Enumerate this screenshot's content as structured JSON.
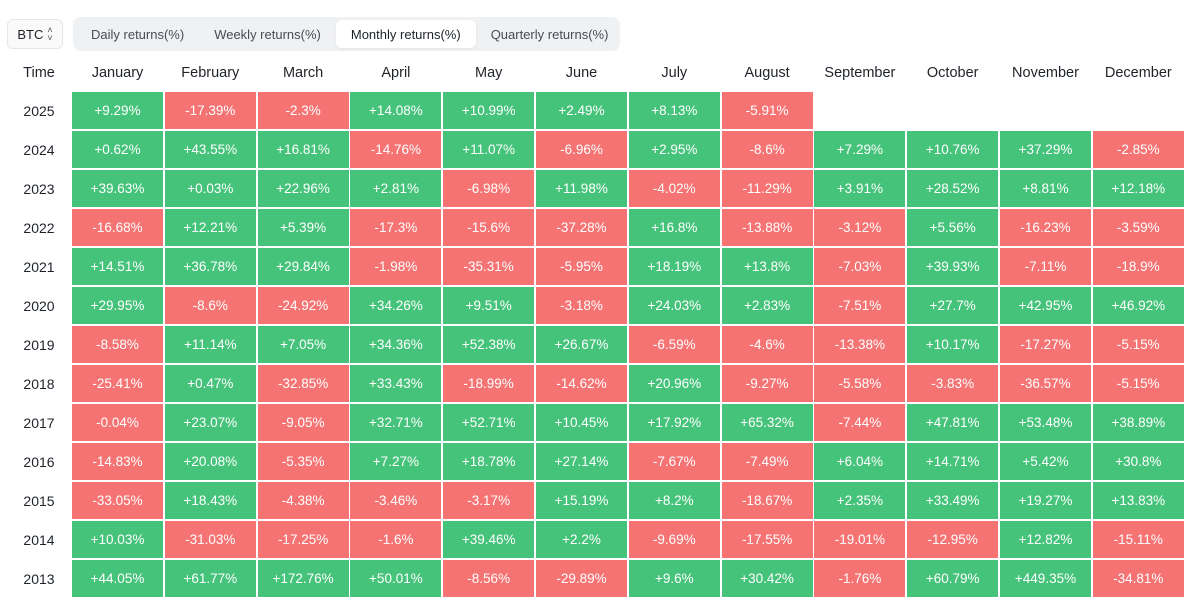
{
  "asset_selector": {
    "value": "BTC"
  },
  "tabs": [
    {
      "label": "Daily returns(%)",
      "active": false
    },
    {
      "label": "Weekly returns(%)",
      "active": false
    },
    {
      "label": "Monthly returns(%)",
      "active": true
    },
    {
      "label": "Quarterly returns(%)",
      "active": false
    }
  ],
  "table": {
    "time_header": "Time",
    "months": [
      "January",
      "February",
      "March",
      "April",
      "May",
      "June",
      "July",
      "August",
      "September",
      "October",
      "November",
      "December"
    ],
    "colors": {
      "positive": "#46c37b",
      "negative": "#f57373"
    },
    "rows": [
      {
        "year": "2025",
        "values": [
          "+9.29%",
          "-17.39%",
          "-2.3%",
          "+14.08%",
          "+10.99%",
          "+2.49%",
          "+8.13%",
          "-5.91%",
          "",
          "",
          "",
          ""
        ]
      },
      {
        "year": "2024",
        "values": [
          "+0.62%",
          "+43.55%",
          "+16.81%",
          "-14.76%",
          "+11.07%",
          "-6.96%",
          "+2.95%",
          "-8.6%",
          "+7.29%",
          "+10.76%",
          "+37.29%",
          "-2.85%"
        ]
      },
      {
        "year": "2023",
        "values": [
          "+39.63%",
          "+0.03%",
          "+22.96%",
          "+2.81%",
          "-6.98%",
          "+11.98%",
          "-4.02%",
          "-11.29%",
          "+3.91%",
          "+28.52%",
          "+8.81%",
          "+12.18%"
        ]
      },
      {
        "year": "2022",
        "values": [
          "-16.68%",
          "+12.21%",
          "+5.39%",
          "-17.3%",
          "-15.6%",
          "-37.28%",
          "+16.8%",
          "-13.88%",
          "-3.12%",
          "+5.56%",
          "-16.23%",
          "-3.59%"
        ]
      },
      {
        "year": "2021",
        "values": [
          "+14.51%",
          "+36.78%",
          "+29.84%",
          "-1.98%",
          "-35.31%",
          "-5.95%",
          "+18.19%",
          "+13.8%",
          "-7.03%",
          "+39.93%",
          "-7.11%",
          "-18.9%"
        ]
      },
      {
        "year": "2020",
        "values": [
          "+29.95%",
          "-8.6%",
          "-24.92%",
          "+34.26%",
          "+9.51%",
          "-3.18%",
          "+24.03%",
          "+2.83%",
          "-7.51%",
          "+27.7%",
          "+42.95%",
          "+46.92%"
        ]
      },
      {
        "year": "2019",
        "values": [
          "-8.58%",
          "+11.14%",
          "+7.05%",
          "+34.36%",
          "+52.38%",
          "+26.67%",
          "-6.59%",
          "-4.6%",
          "-13.38%",
          "+10.17%",
          "-17.27%",
          "-5.15%"
        ]
      },
      {
        "year": "2018",
        "values": [
          "-25.41%",
          "+0.47%",
          "-32.85%",
          "+33.43%",
          "-18.99%",
          "-14.62%",
          "+20.96%",
          "-9.27%",
          "-5.58%",
          "-3.83%",
          "-36.57%",
          "-5.15%"
        ]
      },
      {
        "year": "2017",
        "values": [
          "-0.04%",
          "+23.07%",
          "-9.05%",
          "+32.71%",
          "+52.71%",
          "+10.45%",
          "+17.92%",
          "+65.32%",
          "-7.44%",
          "+47.81%",
          "+53.48%",
          "+38.89%"
        ]
      },
      {
        "year": "2016",
        "values": [
          "-14.83%",
          "+20.08%",
          "-5.35%",
          "+7.27%",
          "+18.78%",
          "+27.14%",
          "-7.67%",
          "-7.49%",
          "+6.04%",
          "+14.71%",
          "+5.42%",
          "+30.8%"
        ]
      },
      {
        "year": "2015",
        "values": [
          "-33.05%",
          "+18.43%",
          "-4.38%",
          "-3.46%",
          "-3.17%",
          "+15.19%",
          "+8.2%",
          "-18.67%",
          "+2.35%",
          "+33.49%",
          "+19.27%",
          "+13.83%"
        ]
      },
      {
        "year": "2014",
        "values": [
          "+10.03%",
          "-31.03%",
          "-17.25%",
          "-1.6%",
          "+39.46%",
          "+2.2%",
          "-9.69%",
          "-17.55%",
          "-19.01%",
          "-12.95%",
          "+12.82%",
          "-15.11%"
        ]
      },
      {
        "year": "2013",
        "values": [
          "+44.05%",
          "+61.77%",
          "+172.76%",
          "+50.01%",
          "-8.56%",
          "-29.89%",
          "+9.6%",
          "+30.42%",
          "-1.76%",
          "+60.79%",
          "+449.35%",
          "-34.81%"
        ]
      }
    ]
  }
}
